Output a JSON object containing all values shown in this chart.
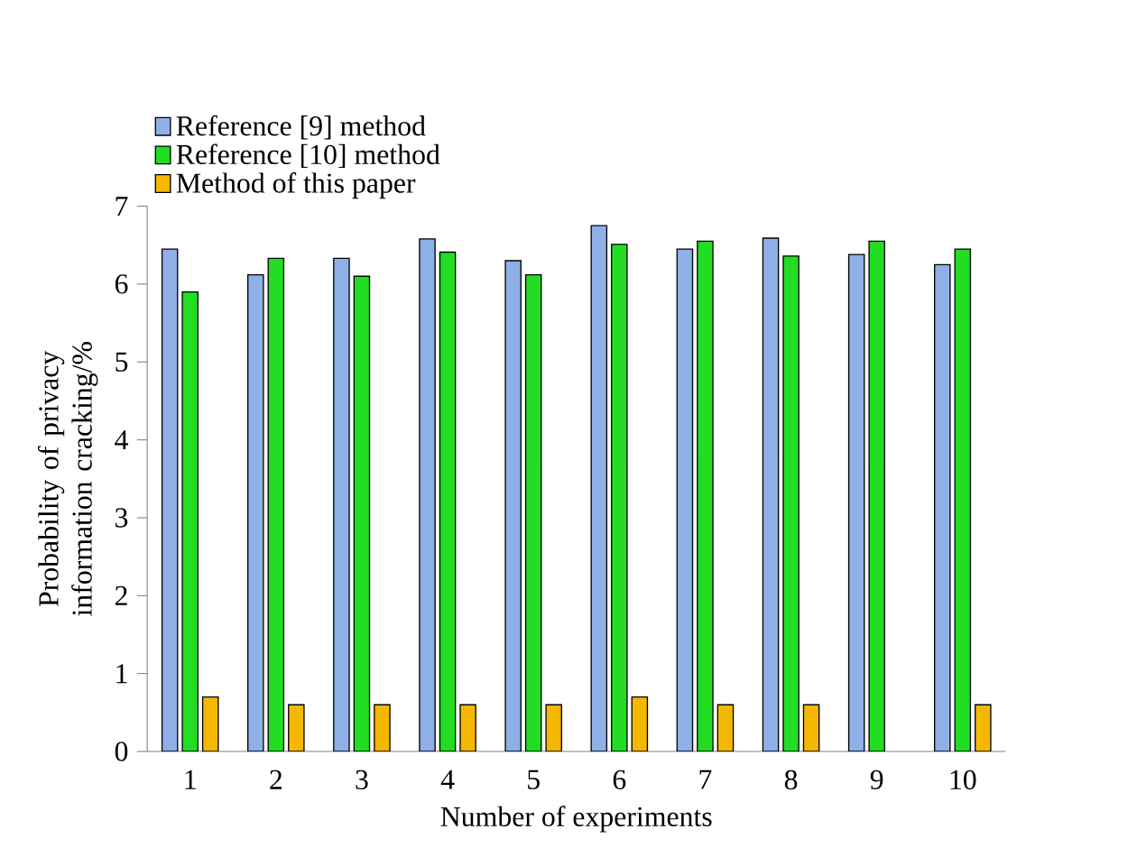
{
  "chart_data": {
    "type": "bar",
    "xlabel": "Number of experiments",
    "ylabel": "Probability of privacy information cracking/%",
    "categories": [
      "1",
      "2",
      "3",
      "4",
      "5",
      "6",
      "7",
      "8",
      "9",
      "10"
    ],
    "series": [
      {
        "name": "Reference [9] method",
        "color": "#8fb0e6",
        "values": [
          6.45,
          6.12,
          6.33,
          6.58,
          6.3,
          6.75,
          6.45,
          6.59,
          6.38,
          6.25
        ]
      },
      {
        "name": "Reference [10] method",
        "color": "#22dd22",
        "values": [
          5.9,
          6.33,
          6.1,
          6.41,
          6.12,
          6.51,
          6.55,
          6.36,
          6.55,
          6.45
        ]
      },
      {
        "name": "Method of this paper",
        "color": "#f5b800",
        "values": [
          0.7,
          0.6,
          0.6,
          0.6,
          0.6,
          0.7,
          0.6,
          0.6,
          null,
          0.6
        ]
      }
    ],
    "ylim": [
      0,
      7
    ],
    "yticks": [
      0,
      1,
      2,
      3,
      4,
      5,
      6,
      7
    ],
    "grid": false,
    "legend": "top left"
  }
}
